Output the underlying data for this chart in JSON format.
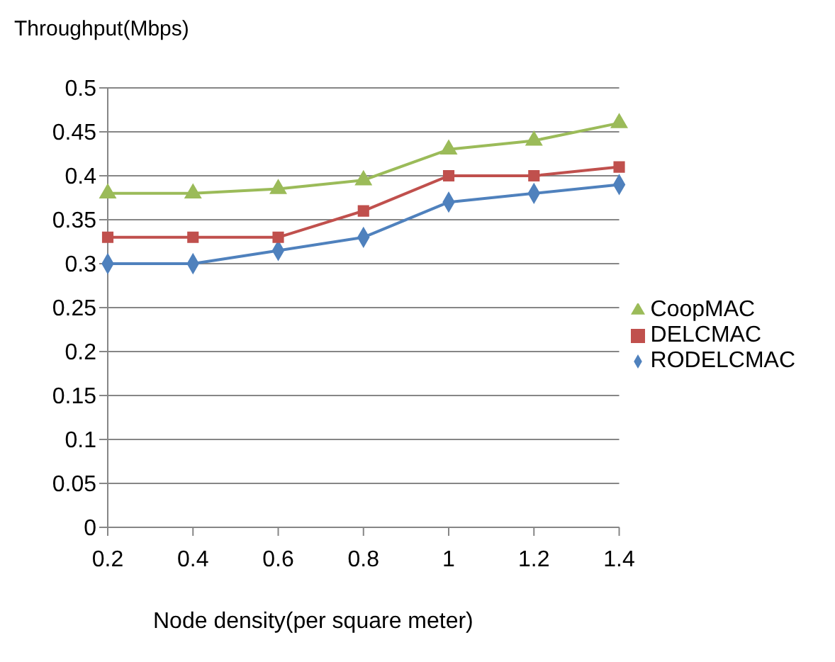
{
  "chart_data": {
    "type": "line",
    "ylabel": "Throughput(Mbps)",
    "xlabel": "Node density(per square meter)",
    "categories": [
      "0.2",
      "0.4",
      "0.6",
      "0.8",
      "1",
      "1.2",
      "1.4"
    ],
    "series": [
      {
        "name": "RODELCMAC",
        "color": "#4f81bd",
        "marker": "diamond",
        "values": [
          0.3,
          0.3,
          0.315,
          0.33,
          0.37,
          0.38,
          0.39
        ]
      },
      {
        "name": "DELCMAC",
        "color": "#c0504d",
        "marker": "square",
        "values": [
          0.33,
          0.33,
          0.33,
          0.36,
          0.4,
          0.4,
          0.41
        ]
      },
      {
        "name": "CoopMAC",
        "color": "#9bbb59",
        "marker": "triangle",
        "values": [
          0.38,
          0.38,
          0.385,
          0.395,
          0.43,
          0.44,
          0.46
        ]
      }
    ],
    "ylim": [
      0,
      0.5
    ],
    "yticks": [
      0,
      0.05,
      0.1,
      0.15,
      0.2,
      0.25,
      0.3,
      0.35,
      0.4,
      0.45,
      0.5
    ],
    "grid": "y",
    "legend": "right",
    "line_style": "solid"
  }
}
